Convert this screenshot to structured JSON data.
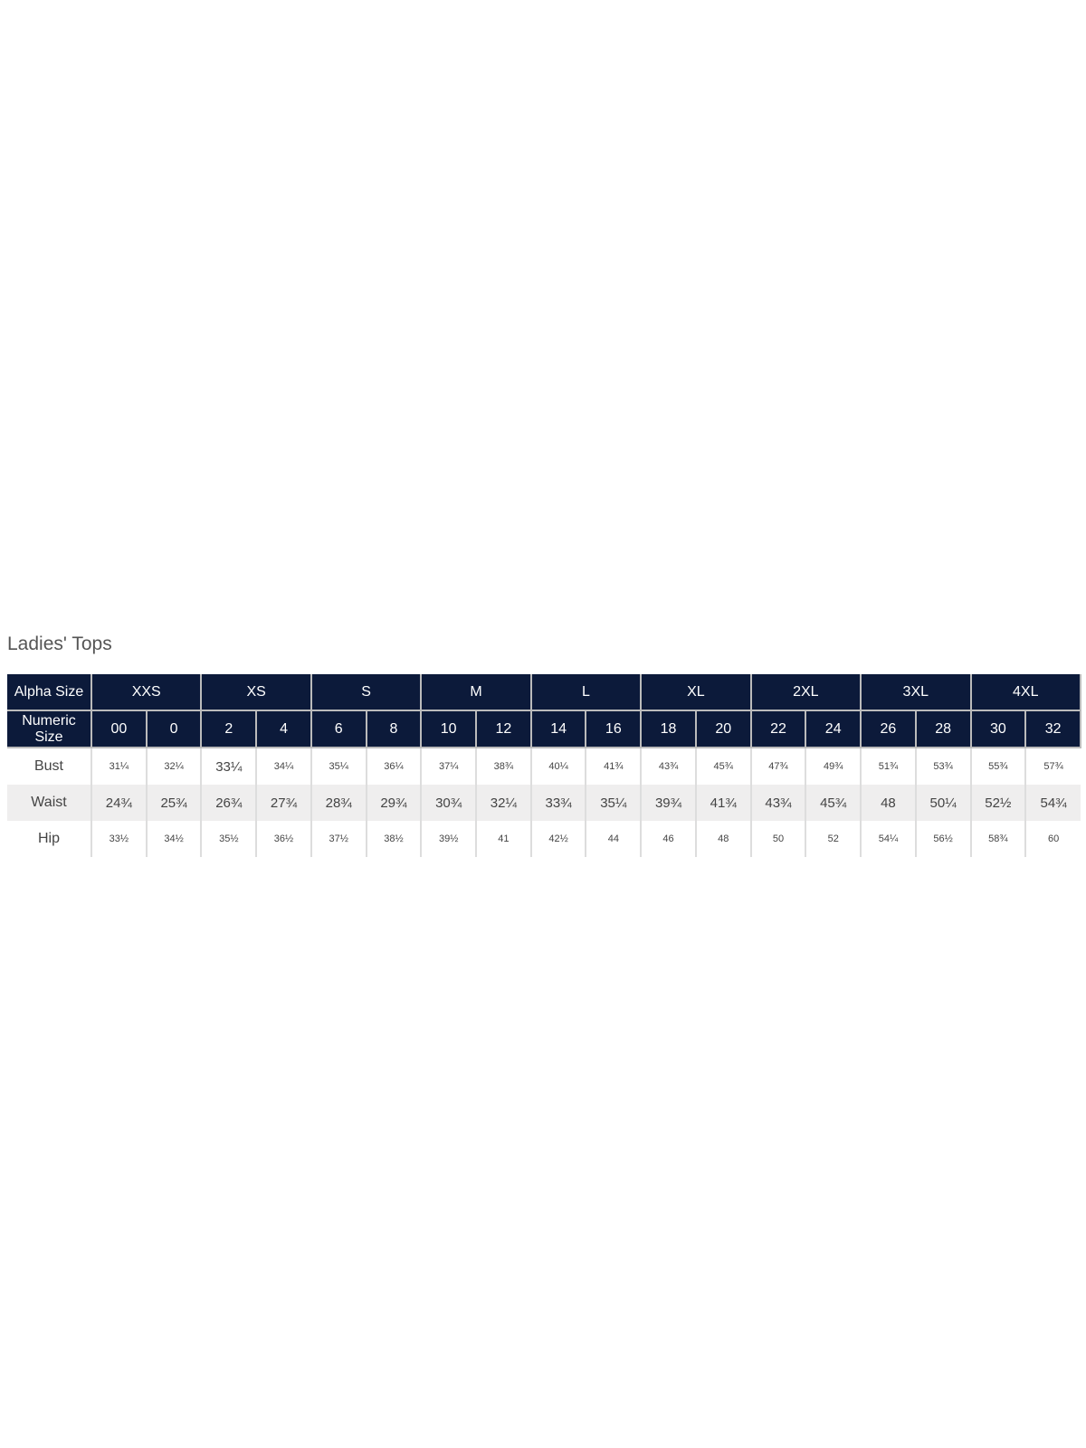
{
  "title": "Ladies' Tops",
  "colors": {
    "header_bg": "#0c1a3a",
    "alt_row_bg": "#efeeee"
  },
  "table": {
    "alpha_label": "Alpha Size",
    "numeric_label": "Numeric Size",
    "alpha_sizes": [
      "XXS",
      "XS",
      "S",
      "M",
      "L",
      "XL",
      "2XL",
      "3XL",
      "4XL"
    ],
    "numeric_sizes": [
      "00",
      "0",
      "2",
      "4",
      "6",
      "8",
      "10",
      "12",
      "14",
      "16",
      "18",
      "20",
      "22",
      "24",
      "26",
      "28",
      "30",
      "32"
    ],
    "rows": [
      {
        "label": "Bust",
        "values": [
          "31¼",
          "32¼",
          "33¼",
          "34¼",
          "35¼",
          "36¼",
          "37¼",
          "38¾",
          "40¼",
          "41¾",
          "43¾",
          "45¾",
          "47¾",
          "49¾",
          "51¾",
          "53¾",
          "55¾",
          "57¾"
        ]
      },
      {
        "label": "Waist",
        "values": [
          "24¾",
          "25¾",
          "26¾",
          "27¾",
          "28¾",
          "29¾",
          "30¾",
          "32¼",
          "33¾",
          "35¼",
          "39¾",
          "41¾",
          "43¾",
          "45¾",
          "48",
          "50¼",
          "52½",
          "54¾"
        ]
      },
      {
        "label": "Hip",
        "values": [
          "33½",
          "34½",
          "35½",
          "36½",
          "37½",
          "38½",
          "39½",
          "41",
          "42½",
          "44",
          "46",
          "48",
          "50",
          "52",
          "54¼",
          "56½",
          "58¾",
          "60"
        ]
      }
    ]
  }
}
